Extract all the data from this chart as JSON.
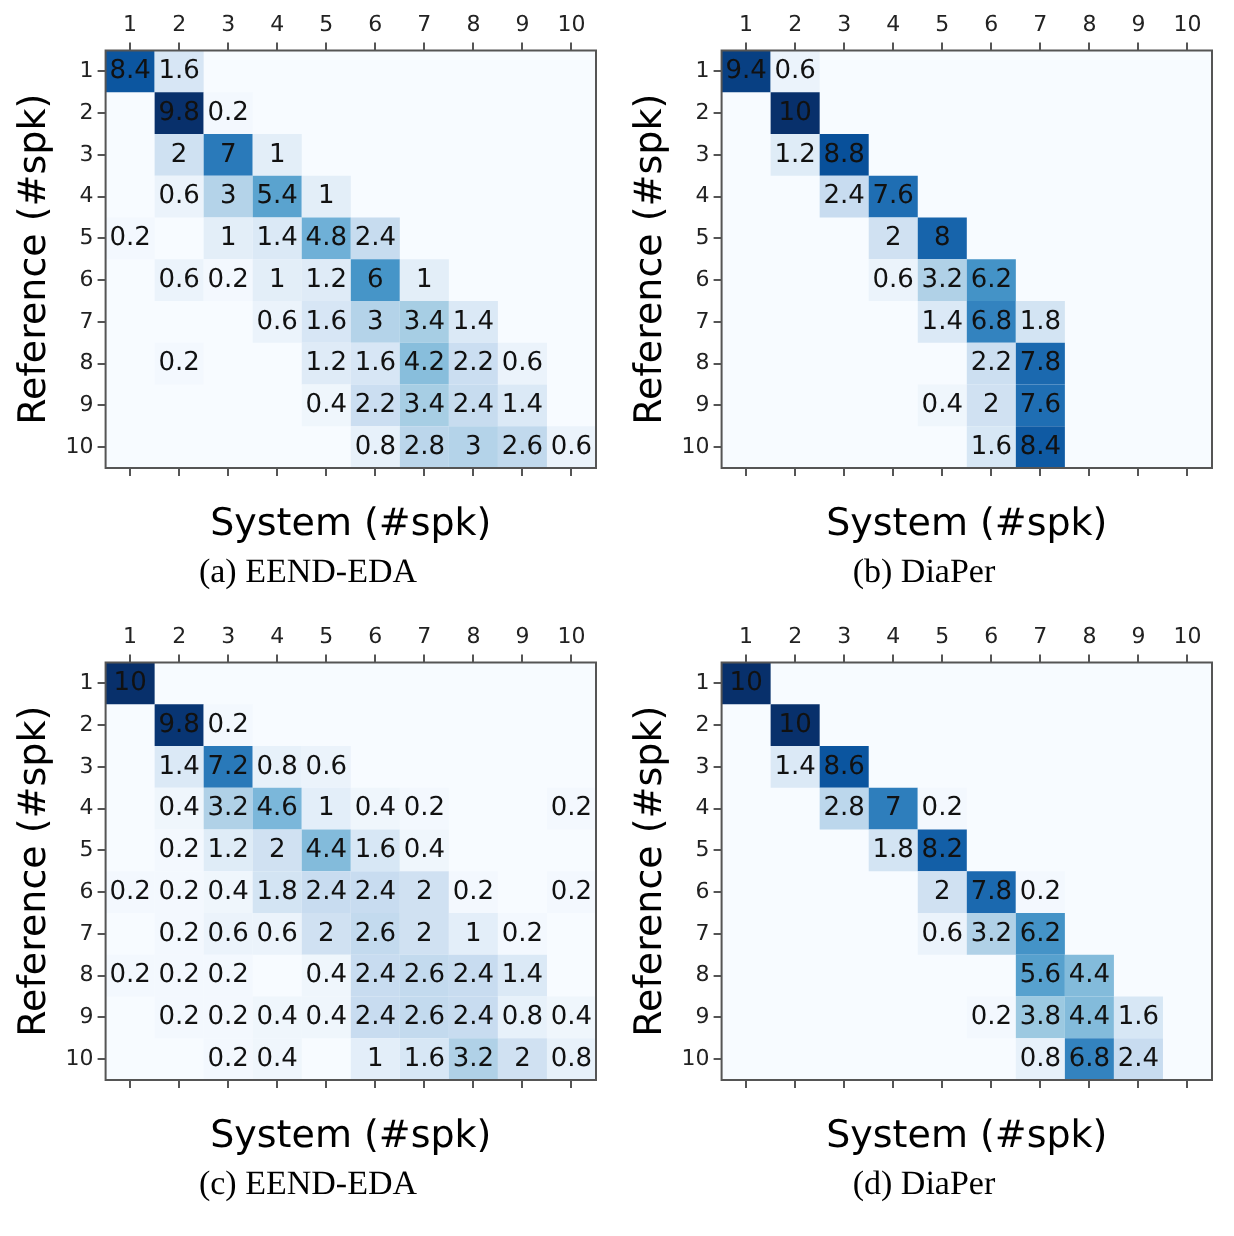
{
  "chart_data": [
    {
      "type": "heatmap",
      "title": "(a) EEND-EDA",
      "xlabel": "System (#spk)",
      "ylabel": "Reference (#spk)",
      "data_labels": true,
      "categories": [
        "1",
        "2",
        "3",
        "4",
        "5",
        "6",
        "7",
        "8",
        "9",
        "10"
      ],
      "y_categories": [
        "1",
        "2",
        "3",
        "4",
        "5",
        "6",
        "7",
        "8",
        "9",
        "10"
      ],
      "cells": [
        [
          8.4,
          1.6,
          null,
          null,
          null,
          null,
          null,
          null,
          null,
          null
        ],
        [
          null,
          9.8,
          0.2,
          null,
          null,
          null,
          null,
          null,
          null,
          null
        ],
        [
          null,
          2,
          7,
          1,
          null,
          null,
          null,
          null,
          null,
          null
        ],
        [
          null,
          0.6,
          3,
          5.4,
          1,
          null,
          null,
          null,
          null,
          null
        ],
        [
          0.2,
          null,
          1,
          1.4,
          4.8,
          2.4,
          null,
          null,
          null,
          null
        ],
        [
          null,
          0.6,
          0.2,
          1,
          1.2,
          6,
          1,
          null,
          null,
          null
        ],
        [
          null,
          null,
          null,
          0.6,
          1.6,
          3,
          3.4,
          1.4,
          null,
          null
        ],
        [
          null,
          0.2,
          null,
          null,
          1.2,
          1.6,
          4.2,
          2.2,
          0.6,
          null
        ],
        [
          null,
          null,
          null,
          null,
          0.4,
          2.2,
          3.4,
          2.4,
          1.4,
          null
        ],
        [
          null,
          null,
          null,
          null,
          null,
          0.8,
          2.8,
          3,
          2.6,
          0.6
        ]
      ]
    },
    {
      "type": "heatmap",
      "title": "(b) DiaPer",
      "xlabel": "System (#spk)",
      "ylabel": "Reference (#spk)",
      "data_labels": true,
      "categories": [
        "1",
        "2",
        "3",
        "4",
        "5",
        "6",
        "7",
        "8",
        "9",
        "10"
      ],
      "y_categories": [
        "1",
        "2",
        "3",
        "4",
        "5",
        "6",
        "7",
        "8",
        "9",
        "10"
      ],
      "cells": [
        [
          9.4,
          0.6,
          null,
          null,
          null,
          null,
          null,
          null,
          null,
          null
        ],
        [
          null,
          10,
          null,
          null,
          null,
          null,
          null,
          null,
          null,
          null
        ],
        [
          null,
          1.2,
          8.8,
          null,
          null,
          null,
          null,
          null,
          null,
          null
        ],
        [
          null,
          null,
          2.4,
          7.6,
          null,
          null,
          null,
          null,
          null,
          null
        ],
        [
          null,
          null,
          null,
          2,
          8,
          null,
          null,
          null,
          null,
          null
        ],
        [
          null,
          null,
          null,
          0.6,
          3.2,
          6.2,
          null,
          null,
          null,
          null
        ],
        [
          null,
          null,
          null,
          null,
          1.4,
          6.8,
          1.8,
          null,
          null,
          null
        ],
        [
          null,
          null,
          null,
          null,
          null,
          2.2,
          7.8,
          null,
          null,
          null
        ],
        [
          null,
          null,
          null,
          null,
          0.4,
          2,
          7.6,
          null,
          null,
          null
        ],
        [
          null,
          null,
          null,
          null,
          null,
          1.6,
          8.4,
          null,
          null,
          null
        ]
      ]
    },
    {
      "type": "heatmap",
      "title": "(c) EEND-EDA",
      "xlabel": "System (#spk)",
      "ylabel": "Reference (#spk)",
      "data_labels": true,
      "categories": [
        "1",
        "2",
        "3",
        "4",
        "5",
        "6",
        "7",
        "8",
        "9",
        "10"
      ],
      "y_categories": [
        "1",
        "2",
        "3",
        "4",
        "5",
        "6",
        "7",
        "8",
        "9",
        "10"
      ],
      "cells": [
        [
          10,
          null,
          null,
          null,
          null,
          null,
          null,
          null,
          null,
          null
        ],
        [
          null,
          9.8,
          0.2,
          null,
          null,
          null,
          null,
          null,
          null,
          null
        ],
        [
          null,
          1.4,
          7.2,
          0.8,
          0.6,
          null,
          null,
          null,
          null,
          null
        ],
        [
          null,
          0.4,
          3.2,
          4.6,
          1,
          0.4,
          0.2,
          null,
          null,
          0.2
        ],
        [
          null,
          0.2,
          1.2,
          2,
          4.4,
          1.6,
          0.4,
          null,
          null,
          null
        ],
        [
          0.2,
          0.2,
          0.4,
          1.8,
          2.4,
          2.4,
          2,
          0.2,
          null,
          0.2
        ],
        [
          null,
          0.2,
          0.6,
          0.6,
          2,
          2.6,
          2,
          1,
          0.2,
          null
        ],
        [
          0.2,
          0.2,
          0.2,
          null,
          0.4,
          2.4,
          2.6,
          2.4,
          1.4,
          null
        ],
        [
          null,
          0.2,
          0.2,
          0.4,
          0.4,
          2.4,
          2.6,
          2.4,
          0.8,
          0.4
        ],
        [
          null,
          null,
          0.2,
          0.4,
          null,
          1,
          1.6,
          3.2,
          2,
          0.8
        ]
      ]
    },
    {
      "type": "heatmap",
      "title": "(d) DiaPer",
      "xlabel": "System (#spk)",
      "ylabel": "Reference (#spk)",
      "data_labels": true,
      "categories": [
        "1",
        "2",
        "3",
        "4",
        "5",
        "6",
        "7",
        "8",
        "9",
        "10"
      ],
      "y_categories": [
        "1",
        "2",
        "3",
        "4",
        "5",
        "6",
        "7",
        "8",
        "9",
        "10"
      ],
      "cells": [
        [
          10,
          null,
          null,
          null,
          null,
          null,
          null,
          null,
          null,
          null
        ],
        [
          null,
          10,
          null,
          null,
          null,
          null,
          null,
          null,
          null,
          null
        ],
        [
          null,
          1.4,
          8.6,
          null,
          null,
          null,
          null,
          null,
          null,
          null
        ],
        [
          null,
          null,
          2.8,
          7,
          0.2,
          null,
          null,
          null,
          null,
          null
        ],
        [
          null,
          null,
          null,
          1.8,
          8.2,
          null,
          null,
          null,
          null,
          null
        ],
        [
          null,
          null,
          null,
          null,
          2,
          7.8,
          0.2,
          null,
          null,
          null
        ],
        [
          null,
          null,
          null,
          null,
          0.6,
          3.2,
          6.2,
          null,
          null,
          null
        ],
        [
          null,
          null,
          null,
          null,
          null,
          null,
          5.6,
          4.4,
          null,
          null
        ],
        [
          null,
          null,
          null,
          null,
          null,
          0.2,
          3.8,
          4.4,
          1.6,
          null
        ],
        [
          null,
          null,
          null,
          null,
          null,
          null,
          0.8,
          6.8,
          2.4,
          null
        ]
      ]
    }
  ]
}
